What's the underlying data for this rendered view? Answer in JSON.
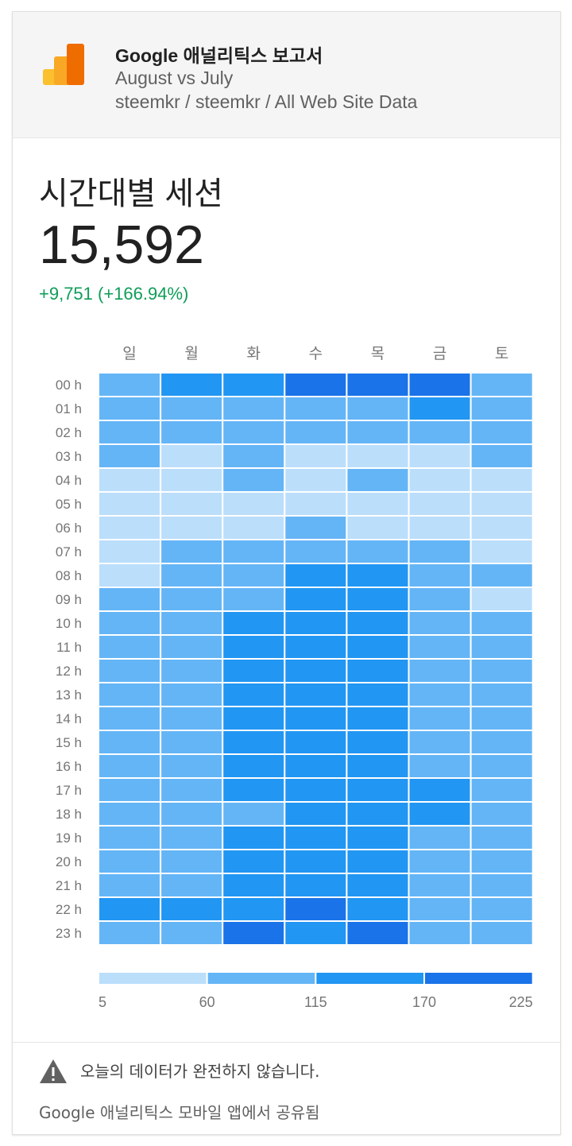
{
  "header": {
    "title": "Google 애널리틱스 보고서",
    "period": "August vs July",
    "property": "steemkr / steemkr / All Web Site Data",
    "logo_icon": "google-analytics-logo"
  },
  "metric": {
    "title": "시간대별 세션",
    "value": "15,592",
    "delta": "+9,751 (+166.94%)",
    "delta_color": "#0f9d58"
  },
  "chart_data": {
    "type": "heatmap",
    "x_categories": [
      "일",
      "월",
      "화",
      "수",
      "목",
      "금",
      "토"
    ],
    "y_categories": [
      "00 h",
      "01 h",
      "02 h",
      "03 h",
      "04 h",
      "05 h",
      "06 h",
      "07 h",
      "08 h",
      "09 h",
      "10 h",
      "11 h",
      "12 h",
      "13 h",
      "14 h",
      "15 h",
      "16 h",
      "17 h",
      "18 h",
      "19 h",
      "20 h",
      "21 h",
      "22 h",
      "23 h"
    ],
    "bins": [
      5,
      60,
      115,
      170,
      225
    ],
    "bin_colors": [
      "#bbdefb",
      "#64b5f6",
      "#2196f3",
      "#1a73e8"
    ],
    "legend_labels": [
      "5",
      "60",
      "115",
      "170",
      "225"
    ],
    "levels": [
      [
        1,
        2,
        2,
        3,
        3,
        3,
        1
      ],
      [
        1,
        1,
        1,
        1,
        1,
        2,
        1
      ],
      [
        1,
        1,
        1,
        1,
        1,
        1,
        1
      ],
      [
        1,
        0,
        1,
        0,
        0,
        0,
        1
      ],
      [
        0,
        0,
        1,
        0,
        1,
        0,
        0
      ],
      [
        0,
        0,
        0,
        0,
        0,
        0,
        0
      ],
      [
        0,
        0,
        0,
        1,
        0,
        0,
        0
      ],
      [
        0,
        1,
        1,
        1,
        1,
        1,
        0
      ],
      [
        0,
        1,
        1,
        2,
        2,
        1,
        1
      ],
      [
        1,
        1,
        1,
        2,
        2,
        1,
        0
      ],
      [
        1,
        1,
        2,
        2,
        2,
        1,
        1
      ],
      [
        1,
        1,
        2,
        2,
        2,
        1,
        1
      ],
      [
        1,
        1,
        2,
        2,
        2,
        1,
        1
      ],
      [
        1,
        1,
        2,
        2,
        2,
        1,
        1
      ],
      [
        1,
        1,
        2,
        2,
        2,
        1,
        1
      ],
      [
        1,
        1,
        2,
        2,
        2,
        1,
        1
      ],
      [
        1,
        1,
        2,
        2,
        2,
        1,
        1
      ],
      [
        1,
        1,
        2,
        2,
        2,
        2,
        1
      ],
      [
        1,
        1,
        1,
        2,
        2,
        2,
        1
      ],
      [
        1,
        1,
        2,
        2,
        2,
        1,
        1
      ],
      [
        1,
        1,
        2,
        2,
        2,
        1,
        1
      ],
      [
        1,
        1,
        2,
        2,
        2,
        1,
        1
      ],
      [
        2,
        2,
        2,
        3,
        2,
        1,
        1
      ],
      [
        1,
        1,
        3,
        2,
        3,
        1,
        1
      ]
    ]
  },
  "footer": {
    "warning_icon": "warning-icon",
    "warning_text": "오늘의 데이터가 완전하지 않습니다.",
    "share_text": "Google 애널리틱스 모바일 앱에서 공유됨"
  }
}
